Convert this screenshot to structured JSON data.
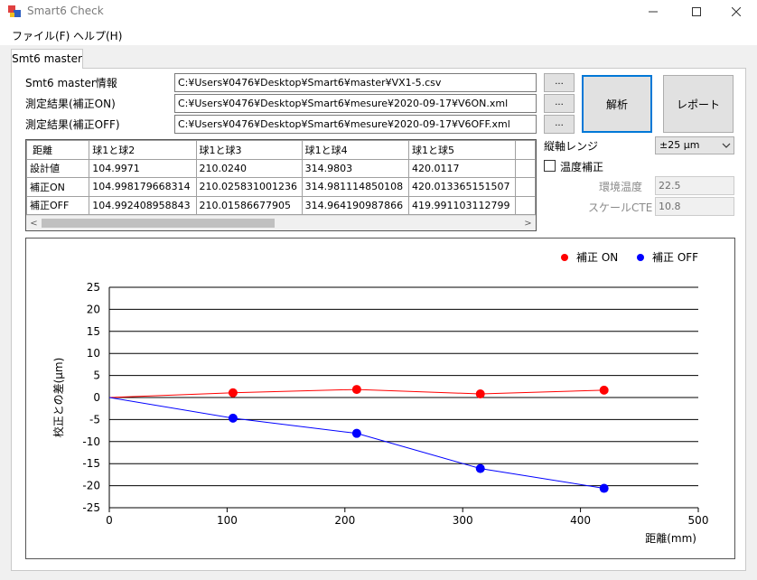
{
  "window": {
    "title": "Smart6 Check",
    "minimize": "—",
    "maximize": "☐",
    "close": "✕"
  },
  "menu": {
    "file": "ファイル(F)",
    "help": "ヘルプ(H)"
  },
  "tab": {
    "label": "Smt6 master"
  },
  "form": {
    "master_label": "Smt6 master情報",
    "master_path": "C:¥Users¥0476¥Desktop¥Smart6¥master¥VX1-5.csv",
    "on_label": "測定結果(補正ON)",
    "on_path": "C:¥Users¥0476¥Desktop¥Smart6¥mesure¥2020-09-17¥V6ON.xml",
    "off_label": "測定結果(補正OFF)",
    "off_path": "C:¥Users¥0476¥Desktop¥Smart6¥mesure¥2020-09-17¥V6OFF.xml",
    "browse": "...",
    "analyze": "解析",
    "report": "レポート"
  },
  "table": {
    "headers": [
      "距離",
      "球1と球2",
      "球1と球3",
      "球1と球4",
      "球1と球5",
      ""
    ],
    "rows": [
      [
        "設計値",
        "104.9971",
        "210.0240",
        "314.9803",
        "420.0117",
        ""
      ],
      [
        "補正ON",
        "104.998179668314",
        "210.025831001236",
        "314.981114850108",
        "420.013365151507",
        ""
      ],
      [
        "補正OFF",
        "104.992408958843",
        "210.01586677905",
        "314.964190987866",
        "419.991103112799",
        ""
      ]
    ],
    "scroll_left": "<",
    "scroll_right": ">"
  },
  "settings": {
    "range_label": "縦軸レンジ",
    "range_value": "±25 μm",
    "temp_comp_label": "温度補正",
    "temp_comp_checked": false,
    "env_temp_label": "環境温度",
    "env_temp_value": "22.5",
    "cte_label": "スケールCTE",
    "cte_value": "10.8"
  },
  "chart_data": {
    "type": "line",
    "xlabel": "距離(mm)",
    "ylabel": "校正との差(μm)",
    "xlim": [
      0,
      500
    ],
    "ylim": [
      -25,
      25
    ],
    "xticks": [
      0,
      100,
      200,
      300,
      400,
      500
    ],
    "yticks": [
      25,
      20,
      15,
      10,
      5,
      0,
      -5,
      -10,
      -15,
      -20,
      -25
    ],
    "grid": "horizontal",
    "legend_position": "top-right",
    "series": [
      {
        "name": "補正 ON",
        "color": "#ff0000",
        "x": [
          0,
          104.9971,
          210.024,
          314.9803,
          420.0117
        ],
        "y": [
          0,
          1.08,
          1.83,
          0.81,
          1.67
        ]
      },
      {
        "name": "補正 OFF",
        "color": "#0000ff",
        "x": [
          0,
          104.9971,
          210.024,
          314.9803,
          420.0117
        ],
        "y": [
          0,
          -4.69,
          -8.13,
          -16.11,
          -20.6
        ]
      }
    ]
  }
}
